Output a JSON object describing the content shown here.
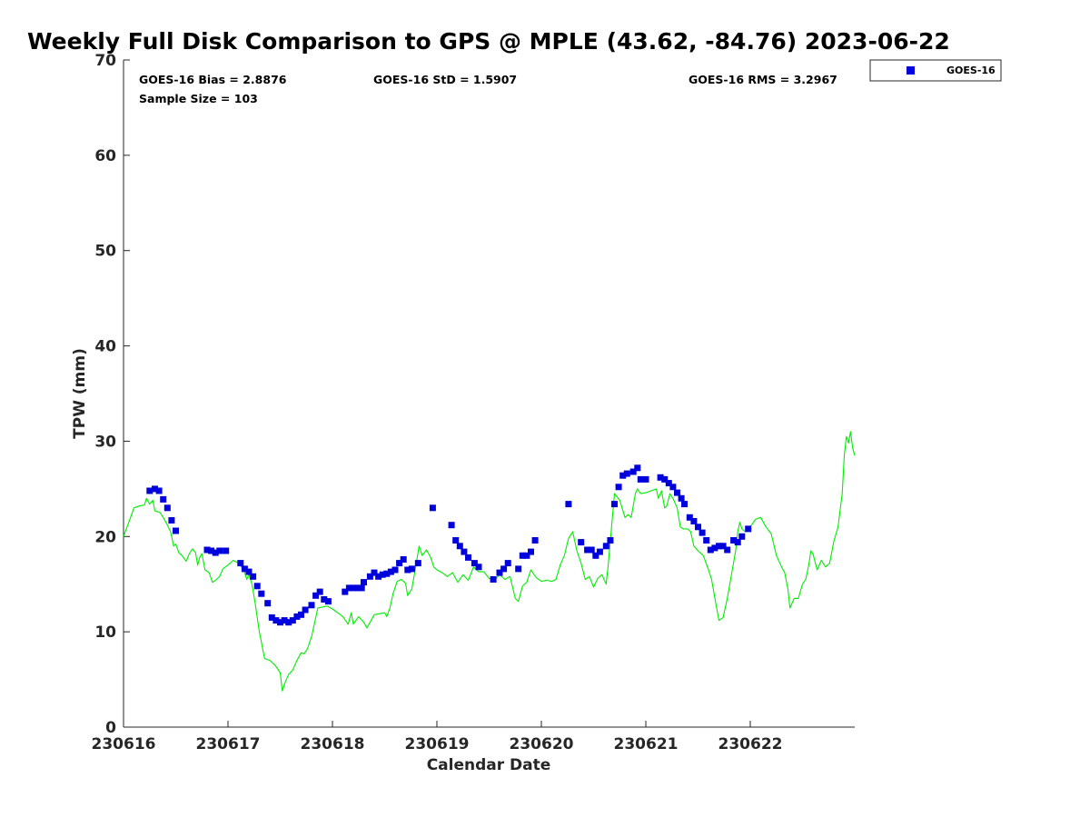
{
  "chart_data": {
    "type": "line+scatter",
    "title": "Weekly Full Disk Comparison to GPS @ MPLE (43.62, -84.76) 2023-06-22",
    "xlabel": "Calendar Date",
    "ylabel": "TPW (mm)",
    "xlim": [
      0,
      7
    ],
    "ylim": [
      0,
      70
    ],
    "x_ticks": [
      {
        "value": 0,
        "label": "230616"
      },
      {
        "value": 1,
        "label": "230617"
      },
      {
        "value": 2,
        "label": "230618"
      },
      {
        "value": 3,
        "label": "230619"
      },
      {
        "value": 4,
        "label": "230620"
      },
      {
        "value": 5,
        "label": "230621"
      },
      {
        "value": 6,
        "label": "230622"
      }
    ],
    "y_ticks": [
      0,
      10,
      20,
      30,
      40,
      50,
      60,
      70
    ],
    "stats": {
      "bias": "GOES-16 Bias = 2.8876",
      "std": "GOES-16 StD = 1.5907",
      "rms": "GOES-16 RMS = 3.2967",
      "sample": "Sample Size = 103"
    },
    "legend": {
      "label": "GOES-16",
      "position": "top-right, outside plot"
    },
    "colors": {
      "goes": "#0000dd",
      "gps": "#00ee00",
      "axis": "#262626"
    },
    "series": [
      {
        "name": "GPS",
        "kind": "line",
        "color": "#00ee00",
        "points": [
          [
            0.0,
            20.0
          ],
          [
            0.05,
            21.5
          ],
          [
            0.1,
            23.0
          ],
          [
            0.15,
            23.2
          ],
          [
            0.2,
            23.3
          ],
          [
            0.22,
            24.0
          ],
          [
            0.25,
            23.4
          ],
          [
            0.28,
            23.8
          ],
          [
            0.3,
            22.7
          ],
          [
            0.35,
            22.5
          ],
          [
            0.38,
            22.0
          ],
          [
            0.42,
            21.2
          ],
          [
            0.45,
            20.5
          ],
          [
            0.48,
            19.0
          ],
          [
            0.5,
            19.2
          ],
          [
            0.53,
            18.3
          ],
          [
            0.56,
            18.0
          ],
          [
            0.6,
            17.4
          ],
          [
            0.63,
            18.2
          ],
          [
            0.66,
            18.7
          ],
          [
            0.69,
            18.3
          ],
          [
            0.71,
            17.0
          ],
          [
            0.73,
            17.8
          ],
          [
            0.75,
            18.2
          ],
          [
            0.78,
            16.5
          ],
          [
            0.82,
            16.2
          ],
          [
            0.85,
            15.2
          ],
          [
            0.88,
            15.4
          ],
          [
            0.92,
            15.8
          ],
          [
            0.95,
            16.6
          ],
          [
            1.0,
            17.0
          ],
          [
            1.05,
            17.5
          ],
          [
            1.1,
            17.2
          ],
          [
            1.15,
            16.5
          ],
          [
            1.18,
            15.5
          ],
          [
            1.2,
            16.0
          ],
          [
            1.23,
            15.0
          ],
          [
            1.26,
            13.0
          ],
          [
            1.3,
            10.0
          ],
          [
            1.35,
            7.2
          ],
          [
            1.4,
            7.0
          ],
          [
            1.45,
            6.5
          ],
          [
            1.5,
            5.7
          ],
          [
            1.52,
            3.8
          ],
          [
            1.55,
            4.8
          ],
          [
            1.58,
            5.5
          ],
          [
            1.62,
            6.0
          ],
          [
            1.66,
            7.0
          ],
          [
            1.7,
            7.8
          ],
          [
            1.73,
            7.7
          ],
          [
            1.76,
            8.2
          ],
          [
            1.8,
            9.5
          ],
          [
            1.83,
            11.0
          ],
          [
            1.86,
            12.5
          ],
          [
            1.9,
            12.6
          ],
          [
            1.95,
            12.7
          ],
          [
            2.0,
            12.4
          ],
          [
            2.05,
            12.0
          ],
          [
            2.1,
            11.6
          ],
          [
            2.15,
            10.8
          ],
          [
            2.18,
            12.0
          ],
          [
            2.2,
            10.8
          ],
          [
            2.25,
            11.6
          ],
          [
            2.3,
            11.0
          ],
          [
            2.33,
            10.4
          ],
          [
            2.36,
            11.0
          ],
          [
            2.4,
            11.8
          ],
          [
            2.45,
            11.9
          ],
          [
            2.5,
            12.0
          ],
          [
            2.52,
            11.6
          ],
          [
            2.55,
            12.5
          ],
          [
            2.58,
            14.0
          ],
          [
            2.62,
            15.3
          ],
          [
            2.66,
            15.5
          ],
          [
            2.7,
            15.1
          ],
          [
            2.72,
            13.8
          ],
          [
            2.76,
            14.5
          ],
          [
            2.8,
            17.0
          ],
          [
            2.83,
            19.0
          ],
          [
            2.86,
            18.0
          ],
          [
            2.9,
            18.6
          ],
          [
            2.94,
            17.8
          ],
          [
            2.97,
            16.8
          ],
          [
            3.0,
            16.5
          ],
          [
            3.05,
            16.2
          ],
          [
            3.1,
            15.8
          ],
          [
            3.15,
            16.2
          ],
          [
            3.2,
            15.2
          ],
          [
            3.25,
            16.0
          ],
          [
            3.3,
            15.4
          ],
          [
            3.35,
            16.8
          ],
          [
            3.4,
            16.3
          ],
          [
            3.45,
            16.3
          ],
          [
            3.5,
            15.6
          ],
          [
            3.55,
            15.4
          ],
          [
            3.6,
            16.0
          ],
          [
            3.65,
            15.5
          ],
          [
            3.7,
            15.8
          ],
          [
            3.75,
            13.5
          ],
          [
            3.78,
            13.2
          ],
          [
            3.82,
            14.8
          ],
          [
            3.86,
            15.2
          ],
          [
            3.9,
            16.5
          ],
          [
            3.95,
            15.7
          ],
          [
            4.0,
            15.3
          ],
          [
            4.05,
            15.4
          ],
          [
            4.1,
            15.3
          ],
          [
            4.14,
            15.5
          ],
          [
            4.18,
            17.0
          ],
          [
            4.22,
            18.0
          ],
          [
            4.26,
            19.8
          ],
          [
            4.3,
            20.5
          ],
          [
            4.34,
            18.5
          ],
          [
            4.38,
            17.2
          ],
          [
            4.42,
            15.5
          ],
          [
            4.46,
            15.8
          ],
          [
            4.5,
            14.7
          ],
          [
            4.54,
            15.6
          ],
          [
            4.58,
            16.0
          ],
          [
            4.62,
            15.0
          ],
          [
            4.64,
            17.0
          ],
          [
            4.68,
            22.0
          ],
          [
            4.7,
            24.5
          ],
          [
            4.75,
            23.8
          ],
          [
            4.8,
            22.0
          ],
          [
            4.83,
            22.3
          ],
          [
            4.86,
            22.0
          ],
          [
            4.9,
            24.5
          ],
          [
            4.92,
            25.0
          ],
          [
            4.95,
            24.5
          ],
          [
            5.0,
            24.6
          ],
          [
            5.05,
            24.8
          ],
          [
            5.1,
            25.0
          ],
          [
            5.12,
            24.0
          ],
          [
            5.15,
            24.8
          ],
          [
            5.18,
            23.0
          ],
          [
            5.2,
            23.2
          ],
          [
            5.23,
            24.5
          ],
          [
            5.26,
            24.0
          ],
          [
            5.3,
            23.0
          ],
          [
            5.33,
            21.0
          ],
          [
            5.36,
            20.8
          ],
          [
            5.4,
            20.8
          ],
          [
            5.43,
            20.5
          ],
          [
            5.46,
            19.0
          ],
          [
            5.5,
            18.5
          ],
          [
            5.55,
            18.0
          ],
          [
            5.6,
            16.5
          ],
          [
            5.63,
            15.5
          ],
          [
            5.67,
            13.0
          ],
          [
            5.7,
            11.2
          ],
          [
            5.74,
            11.5
          ],
          [
            5.78,
            13.5
          ],
          [
            5.82,
            16.0
          ],
          [
            5.86,
            18.5
          ],
          [
            5.88,
            20.5
          ],
          [
            5.9,
            21.5
          ],
          [
            5.92,
            20.8
          ],
          [
            5.95,
            20.5
          ],
          [
            6.0,
            21.0
          ],
          [
            6.05,
            21.8
          ],
          [
            6.1,
            22.0
          ],
          [
            6.15,
            21.0
          ],
          [
            6.2,
            20.3
          ],
          [
            6.25,
            18.0
          ],
          [
            6.3,
            16.8
          ],
          [
            6.33,
            16.2
          ],
          [
            6.36,
            14.5
          ],
          [
            6.38,
            12.5
          ],
          [
            6.42,
            13.5
          ],
          [
            6.46,
            13.5
          ],
          [
            6.5,
            15.0
          ],
          [
            6.53,
            15.5
          ],
          [
            6.56,
            17.0
          ],
          [
            6.58,
            18.5
          ],
          [
            6.6,
            18.2
          ],
          [
            6.64,
            16.5
          ],
          [
            6.68,
            17.5
          ],
          [
            6.72,
            16.8
          ],
          [
            6.76,
            17.2
          ],
          [
            6.8,
            19.5
          ],
          [
            6.84,
            21.0
          ],
          [
            6.88,
            24.5
          ],
          [
            6.9,
            28.5
          ],
          [
            6.92,
            30.5
          ],
          [
            6.94,
            29.8
          ],
          [
            6.96,
            31.0
          ],
          [
            6.98,
            29.3
          ],
          [
            7.0,
            28.5
          ]
        ]
      },
      {
        "name": "GOES-16",
        "kind": "scatter",
        "color": "#0000dd",
        "points": [
          [
            0.25,
            24.8
          ],
          [
            0.3,
            25.0
          ],
          [
            0.34,
            24.8
          ],
          [
            0.38,
            23.9
          ],
          [
            0.42,
            23.0
          ],
          [
            0.46,
            21.7
          ],
          [
            0.5,
            20.6
          ],
          [
            0.8,
            18.6
          ],
          [
            0.84,
            18.5
          ],
          [
            0.88,
            18.3
          ],
          [
            0.92,
            18.5
          ],
          [
            0.98,
            18.5
          ],
          [
            1.12,
            17.2
          ],
          [
            1.16,
            16.6
          ],
          [
            1.2,
            16.3
          ],
          [
            1.24,
            15.8
          ],
          [
            1.28,
            14.8
          ],
          [
            1.32,
            14.0
          ],
          [
            1.38,
            13.0
          ],
          [
            1.42,
            11.5
          ],
          [
            1.46,
            11.2
          ],
          [
            1.5,
            11.0
          ],
          [
            1.54,
            11.2
          ],
          [
            1.58,
            11.0
          ],
          [
            1.62,
            11.2
          ],
          [
            1.66,
            11.6
          ],
          [
            1.7,
            11.8
          ],
          [
            1.74,
            12.3
          ],
          [
            1.8,
            12.8
          ],
          [
            1.84,
            13.8
          ],
          [
            1.88,
            14.2
          ],
          [
            1.92,
            13.4
          ],
          [
            1.96,
            13.2
          ],
          [
            2.12,
            14.2
          ],
          [
            2.16,
            14.6
          ],
          [
            2.2,
            14.6
          ],
          [
            2.24,
            14.6
          ],
          [
            2.28,
            14.6
          ],
          [
            2.3,
            15.2
          ],
          [
            2.36,
            15.8
          ],
          [
            2.4,
            16.2
          ],
          [
            2.44,
            15.8
          ],
          [
            2.48,
            16.0
          ],
          [
            2.52,
            16.1
          ],
          [
            2.56,
            16.3
          ],
          [
            2.6,
            16.5
          ],
          [
            2.64,
            17.2
          ],
          [
            2.68,
            17.6
          ],
          [
            2.72,
            16.5
          ],
          [
            2.76,
            16.6
          ],
          [
            2.82,
            17.2
          ],
          [
            2.96,
            23.0
          ],
          [
            3.14,
            21.2
          ],
          [
            3.18,
            19.6
          ],
          [
            3.22,
            19.0
          ],
          [
            3.26,
            18.4
          ],
          [
            3.3,
            17.8
          ],
          [
            3.36,
            17.2
          ],
          [
            3.4,
            16.8
          ],
          [
            3.54,
            15.5
          ],
          [
            3.6,
            16.2
          ],
          [
            3.64,
            16.6
          ],
          [
            3.68,
            17.2
          ],
          [
            3.78,
            16.6
          ],
          [
            3.82,
            18.0
          ],
          [
            3.86,
            18.0
          ],
          [
            3.9,
            18.4
          ],
          [
            3.94,
            19.6
          ],
          [
            4.26,
            23.4
          ],
          [
            4.38,
            19.4
          ],
          [
            4.44,
            18.6
          ],
          [
            4.48,
            18.6
          ],
          [
            4.52,
            18.0
          ],
          [
            4.56,
            18.4
          ],
          [
            4.62,
            19.0
          ],
          [
            4.66,
            19.6
          ],
          [
            4.7,
            23.4
          ],
          [
            4.74,
            25.2
          ],
          [
            4.78,
            26.4
          ],
          [
            4.82,
            26.6
          ],
          [
            4.88,
            26.8
          ],
          [
            4.92,
            27.2
          ],
          [
            4.95,
            26.0
          ],
          [
            5.0,
            26.0
          ],
          [
            5.14,
            26.2
          ],
          [
            5.18,
            26.0
          ],
          [
            5.22,
            25.6
          ],
          [
            5.26,
            25.2
          ],
          [
            5.3,
            24.6
          ],
          [
            5.34,
            24.0
          ],
          [
            5.37,
            23.4
          ],
          [
            5.42,
            22.0
          ],
          [
            5.46,
            21.6
          ],
          [
            5.5,
            21.0
          ],
          [
            5.54,
            20.4
          ],
          [
            5.58,
            19.6
          ],
          [
            5.62,
            18.6
          ],
          [
            5.66,
            18.8
          ],
          [
            5.7,
            19.0
          ],
          [
            5.74,
            19.0
          ],
          [
            5.78,
            18.6
          ],
          [
            5.84,
            19.6
          ],
          [
            5.88,
            19.4
          ],
          [
            5.92,
            20.0
          ],
          [
            5.98,
            20.8
          ]
        ]
      }
    ]
  }
}
